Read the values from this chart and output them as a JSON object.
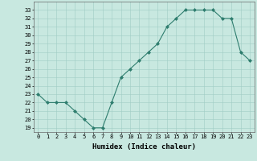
{
  "x": [
    0,
    1,
    2,
    3,
    4,
    5,
    6,
    7,
    8,
    9,
    10,
    11,
    12,
    13,
    14,
    15,
    16,
    17,
    18,
    19,
    20,
    21,
    22,
    23
  ],
  "y": [
    23,
    22,
    22,
    22,
    21,
    20,
    19,
    19,
    22,
    25,
    26,
    27,
    28,
    29,
    31,
    32,
    33,
    33,
    33,
    33,
    32,
    32,
    28,
    27
  ],
  "line_color": "#2e7d6e",
  "marker_color": "#2e7d6e",
  "bg_color": "#c8e8e0",
  "grid_color": "#a0ccc5",
  "xlabel": "Humidex (Indice chaleur)",
  "ylim": [
    18.5,
    34
  ],
  "xlim": [
    -0.5,
    23.5
  ],
  "yticks": [
    19,
    20,
    21,
    22,
    23,
    24,
    25,
    26,
    27,
    28,
    29,
    30,
    31,
    32,
    33
  ],
  "xticks": [
    0,
    1,
    2,
    3,
    4,
    5,
    6,
    7,
    8,
    9,
    10,
    11,
    12,
    13,
    14,
    15,
    16,
    17,
    18,
    19,
    20,
    21,
    22,
    23
  ],
  "tick_label_size": 5.0,
  "xlabel_size": 6.5
}
